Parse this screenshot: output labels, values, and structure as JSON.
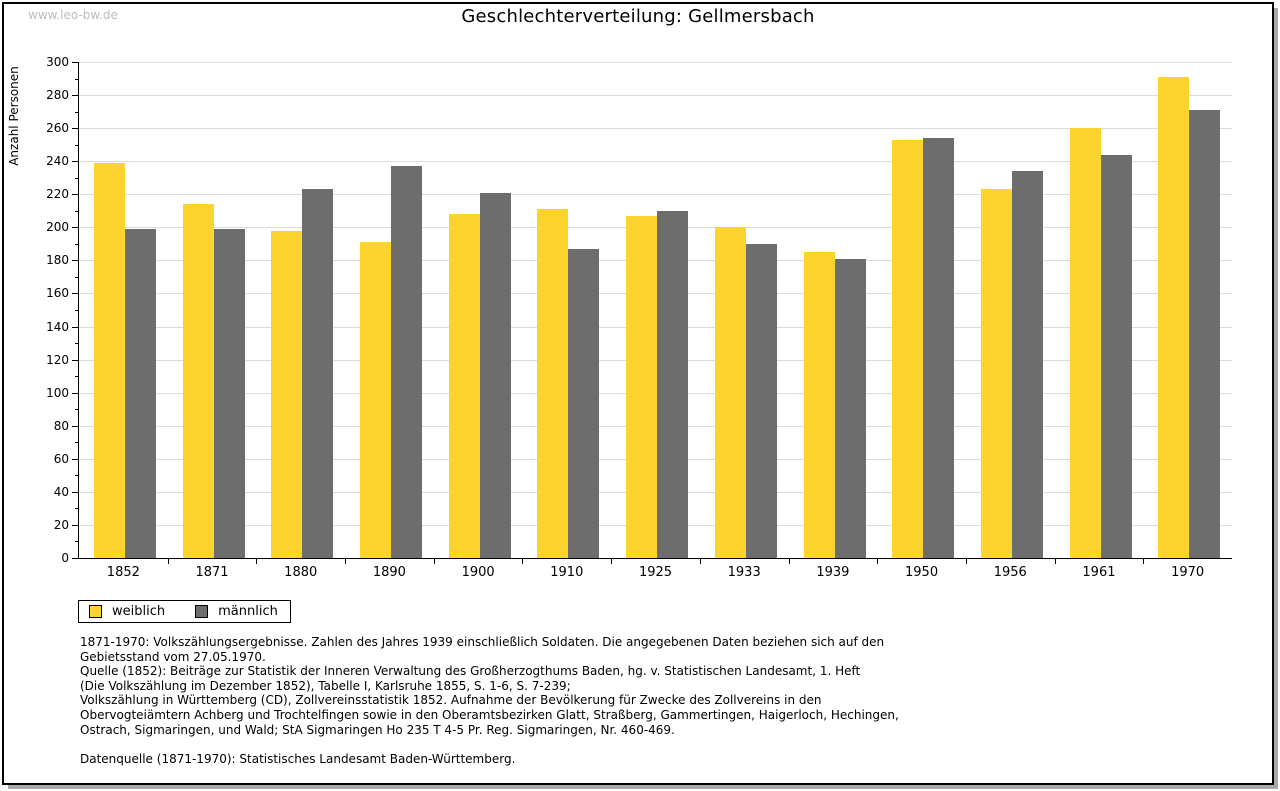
{
  "watermark": "www.leo-bw.de",
  "chart_data": {
    "type": "bar",
    "title": "Geschlechterverteilung: Gellmersbach",
    "xlabel": "",
    "ylabel": "Anzahl Personen",
    "ylim": [
      0,
      300
    ],
    "ytick_step": 20,
    "ytick_minor_step": 10,
    "grid": true,
    "legend_position": "bottom-left",
    "categories": [
      "1852",
      "1871",
      "1880",
      "1890",
      "1900",
      "1910",
      "1925",
      "1933",
      "1939",
      "1950",
      "1956",
      "1961",
      "1970"
    ],
    "series": [
      {
        "name": "weiblich",
        "color": "#fcd42d",
        "values": [
          239,
          214,
          198,
          191,
          208,
          211,
          207,
          200,
          185,
          253,
          223,
          260,
          291
        ]
      },
      {
        "name": "männlich",
        "color": "#6d6d6d",
        "values": [
          199,
          199,
          223,
          237,
          221,
          187,
          210,
          190,
          181,
          254,
          234,
          244,
          271
        ]
      }
    ]
  },
  "footnotes": {
    "lines": [
      "1871-1970: Volkszählungsergebnisse. Zahlen des Jahres 1939 einschließlich Soldaten. Die angegebenen Daten beziehen sich auf den",
      "Gebietsstand vom 27.05.1970.",
      "Quelle (1852): Beiträge zur Statistik der Inneren Verwaltung des Großherzogthums Baden, hg. v. Statistischen Landesamt, 1. Heft",
      "(Die Volkszählung im Dezember 1852), Tabelle I, Karlsruhe 1855, S. 1-6, S. 7-239;",
      "Volkszählung in Württemberg (CD), Zollvereinsstatistik 1852. Aufnahme der Bevölkerung für Zwecke des Zollvereins in den",
      "Obervogteiämtern Achberg und Trochtelfingen sowie in den Oberamtsbezirken Glatt, Straßberg, Gammertingen, Haigerloch, Hechingen,",
      "Ostrach, Sigmaringen, und Wald; StA Sigmaringen Ho 235 T 4-5 Pr. Reg. Sigmaringen, Nr. 460-469."
    ],
    "datenquelle": "Datenquelle (1871-1970): Statistisches Landesamt Baden-Württemberg."
  },
  "colors": {
    "weiblich": "#fcd42d",
    "männlich": "#6d6d6d",
    "gridline": "#dcdcdc",
    "watermark": "#bcbcbc",
    "axis": "#000000"
  }
}
